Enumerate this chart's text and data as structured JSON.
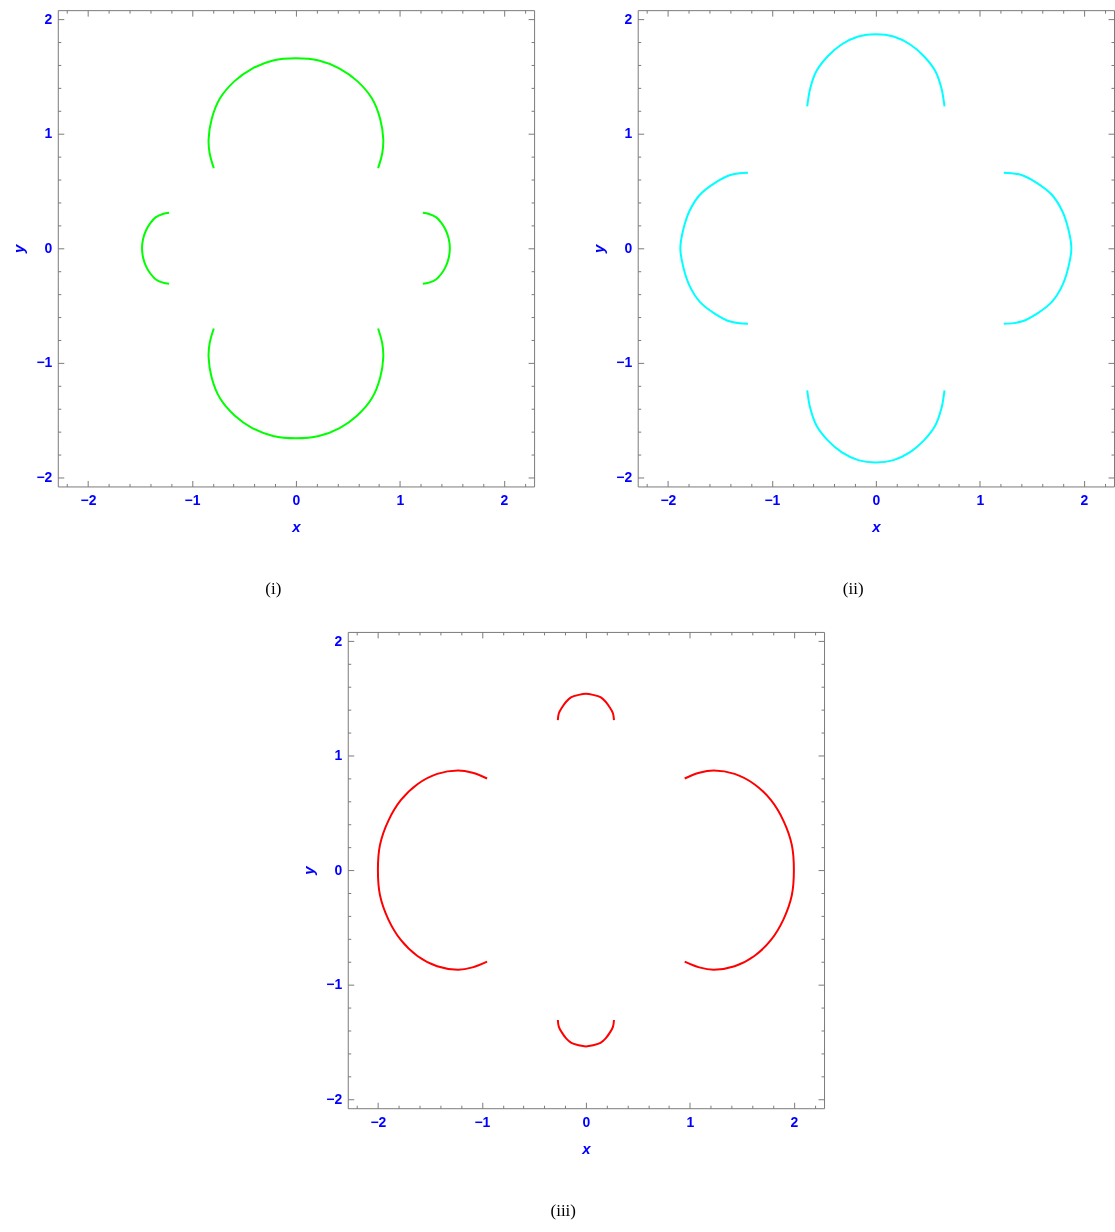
{
  "chart_data": [
    {
      "type": "line",
      "xlabel": "x",
      "ylabel": "y",
      "annotations": [
        "(i)"
      ],
      "xlim": [
        -2.29,
        2.29
      ],
      "ylim": [
        -2.08,
        2.08
      ],
      "xticks": [
        {
          "value": -2.2,
          "label": null
        },
        {
          "value": -2,
          "label": "−2"
        },
        {
          "value": -1.8,
          "label": null
        },
        {
          "value": -1.6,
          "label": null
        },
        {
          "value": -1.4,
          "label": null
        },
        {
          "value": -1.2,
          "label": null
        },
        {
          "value": -1,
          "label": "−1"
        },
        {
          "value": -0.8,
          "label": null
        },
        {
          "value": -0.6,
          "label": null
        },
        {
          "value": -0.4,
          "label": null
        },
        {
          "value": -0.2,
          "label": null
        },
        0,
        {
          "value": 0.2,
          "label": null
        },
        {
          "value": 0.4,
          "label": null
        },
        {
          "value": 0.6,
          "label": null
        },
        {
          "value": 0.8,
          "label": null
        },
        1,
        {
          "value": 1.2,
          "label": null
        },
        {
          "value": 1.4,
          "label": null
        },
        {
          "value": 1.6,
          "label": null
        },
        {
          "value": 1.8,
          "label": null
        },
        2,
        {
          "value": 2.2,
          "label": null
        }
      ],
      "yticks": [
        {
          "value": -2,
          "label": "−2"
        },
        {
          "value": -1.8,
          "label": null
        },
        {
          "value": -1.6,
          "label": null
        },
        {
          "value": -1.4,
          "label": null
        },
        {
          "value": -1.2,
          "label": null
        },
        {
          "value": -1,
          "label": "−1"
        },
        {
          "value": -0.8,
          "label": null
        },
        {
          "value": -0.6,
          "label": null
        },
        {
          "value": -0.4,
          "label": null
        },
        {
          "value": -0.2,
          "label": null
        },
        0,
        {
          "value": 0.2,
          "label": null
        },
        {
          "value": 0.4,
          "label": null
        },
        {
          "value": 0.6,
          "label": null
        },
        {
          "value": 0.8,
          "label": null
        },
        1,
        {
          "value": 1.2,
          "label": null
        },
        {
          "value": 1.4,
          "label": null
        },
        {
          "value": 1.6,
          "label": null
        },
        {
          "value": 1.8,
          "label": null
        },
        2
      ],
      "series": [
        {
          "color": "#00ff00",
          "x": [
            0.79,
            0.83,
            0.84,
            0.81,
            0.73,
            0.59,
            0.42,
            0.22,
            0,
            -0.22,
            -0.42,
            -0.59,
            -0.73,
            -0.81,
            -0.84,
            -0.83,
            -0.79
          ],
          "values": [
            0.7,
            0.83,
            0.95,
            1.13,
            1.31,
            1.46,
            1.57,
            1.64,
            1.66,
            1.64,
            1.57,
            1.46,
            1.31,
            1.13,
            0.95,
            0.83,
            0.7
          ]
        },
        {
          "color": "#00ff00",
          "x": [
            0.79,
            0.83,
            0.84,
            0.81,
            0.73,
            0.59,
            0.42,
            0.22,
            0,
            -0.22,
            -0.42,
            -0.59,
            -0.73,
            -0.81,
            -0.84,
            -0.83,
            -0.79
          ],
          "values": [
            -0.7,
            -0.83,
            -0.95,
            -1.13,
            -1.31,
            -1.46,
            -1.57,
            -1.64,
            -1.66,
            -1.64,
            -1.57,
            -1.46,
            -1.31,
            -1.13,
            -0.95,
            -0.83,
            -0.7
          ]
        },
        {
          "color": "#00ff00",
          "x": [
            -1.22,
            -1.28,
            -1.35,
            -1.4,
            -1.44,
            -1.47,
            -1.48,
            -1.47,
            -1.44,
            -1.4,
            -1.35,
            -1.28,
            -1.22
          ],
          "values": [
            0.31,
            0.3,
            0.27,
            0.22,
            0.16,
            0.08,
            0,
            -0.08,
            -0.16,
            -0.22,
            -0.27,
            -0.3,
            -0.31
          ]
        },
        {
          "color": "#00ff00",
          "x": [
            1.22,
            1.28,
            1.35,
            1.4,
            1.44,
            1.47,
            1.48,
            1.47,
            1.44,
            1.4,
            1.35,
            1.28,
            1.22
          ],
          "values": [
            0.31,
            0.3,
            0.27,
            0.22,
            0.16,
            0.08,
            0,
            -0.08,
            -0.16,
            -0.22,
            -0.27,
            -0.3,
            -0.31
          ]
        }
      ]
    },
    {
      "type": "line",
      "xlabel": "x",
      "ylabel": "y",
      "annotations": [
        "(ii)"
      ],
      "xlim": [
        -2.29,
        2.29
      ],
      "ylim": [
        -2.08,
        2.08
      ],
      "xticks": [
        {
          "value": -2.2,
          "label": null
        },
        {
          "value": -2,
          "label": "−2"
        },
        {
          "value": -1.8,
          "label": null
        },
        {
          "value": -1.6,
          "label": null
        },
        {
          "value": -1.4,
          "label": null
        },
        {
          "value": -1.2,
          "label": null
        },
        {
          "value": -1,
          "label": "−1"
        },
        {
          "value": -0.8,
          "label": null
        },
        {
          "value": -0.6,
          "label": null
        },
        {
          "value": -0.4,
          "label": null
        },
        {
          "value": -0.2,
          "label": null
        },
        0,
        {
          "value": 0.2,
          "label": null
        },
        {
          "value": 0.4,
          "label": null
        },
        {
          "value": 0.6,
          "label": null
        },
        {
          "value": 0.8,
          "label": null
        },
        1,
        {
          "value": 1.2,
          "label": null
        },
        {
          "value": 1.4,
          "label": null
        },
        {
          "value": 1.6,
          "label": null
        },
        {
          "value": 1.8,
          "label": null
        },
        2,
        {
          "value": 2.2,
          "label": null
        }
      ],
      "yticks": [
        {
          "value": -2,
          "label": "−2"
        },
        {
          "value": -1.8,
          "label": null
        },
        {
          "value": -1.6,
          "label": null
        },
        {
          "value": -1.4,
          "label": null
        },
        {
          "value": -1.2,
          "label": null
        },
        {
          "value": -1,
          "label": "−1"
        },
        {
          "value": -0.8,
          "label": null
        },
        {
          "value": -0.6,
          "label": null
        },
        {
          "value": -0.4,
          "label": null
        },
        {
          "value": -0.2,
          "label": null
        },
        0,
        {
          "value": 0.2,
          "label": null
        },
        {
          "value": 0.4,
          "label": null
        },
        {
          "value": 0.6,
          "label": null
        },
        {
          "value": 0.8,
          "label": null
        },
        1,
        {
          "value": 1.2,
          "label": null
        },
        {
          "value": 1.4,
          "label": null
        },
        {
          "value": 1.6,
          "label": null
        },
        {
          "value": 1.8,
          "label": null
        },
        2
      ],
      "series": [
        {
          "color": "#00ffff",
          "x": [
            0.66,
            0.63,
            0.57,
            0.46,
            0.33,
            0.17,
            0,
            -0.17,
            -0.33,
            -0.46,
            -0.57,
            -0.63,
            -0.66
          ],
          "values": [
            1.24,
            1.4,
            1.55,
            1.68,
            1.78,
            1.85,
            1.87,
            1.85,
            1.78,
            1.68,
            1.55,
            1.4,
            1.24
          ]
        },
        {
          "color": "#00ffff",
          "x": [
            0.66,
            0.63,
            0.57,
            0.46,
            0.33,
            0.17,
            0,
            -0.17,
            -0.33,
            -0.46,
            -0.57,
            -0.63,
            -0.66
          ],
          "values": [
            -1.24,
            -1.4,
            -1.55,
            -1.68,
            -1.78,
            -1.85,
            -1.87,
            -1.85,
            -1.78,
            -1.68,
            -1.55,
            -1.4,
            -1.24
          ]
        },
        {
          "color": "#00ffff",
          "x": [
            -1.23,
            -1.4,
            -1.55,
            -1.69,
            -1.79,
            -1.85,
            -1.88,
            -1.85,
            -1.79,
            -1.69,
            -1.55,
            -1.4,
            -1.23
          ],
          "values": [
            0.66,
            0.64,
            0.57,
            0.47,
            0.33,
            0.17,
            0,
            -0.17,
            -0.33,
            -0.47,
            -0.57,
            -0.64,
            -0.66
          ]
        },
        {
          "color": "#00ffff",
          "x": [
            1.23,
            1.4,
            1.55,
            1.69,
            1.79,
            1.85,
            1.88,
            1.85,
            1.79,
            1.69,
            1.55,
            1.4,
            1.23
          ],
          "values": [
            0.66,
            0.64,
            0.57,
            0.47,
            0.33,
            0.17,
            0,
            -0.17,
            -0.33,
            -0.47,
            -0.57,
            -0.64,
            -0.66
          ]
        }
      ]
    },
    {
      "type": "line",
      "xlabel": "x",
      "ylabel": "y",
      "annotations": [
        "(iii)"
      ],
      "xlim": [
        -2.29,
        2.29
      ],
      "ylim": [
        -2.08,
        2.08
      ],
      "xticks": [
        {
          "value": -2.2,
          "label": null
        },
        {
          "value": -2,
          "label": "−2"
        },
        {
          "value": -1.8,
          "label": null
        },
        {
          "value": -1.6,
          "label": null
        },
        {
          "value": -1.4,
          "label": null
        },
        {
          "value": -1.2,
          "label": null
        },
        {
          "value": -1,
          "label": "−1"
        },
        {
          "value": -0.8,
          "label": null
        },
        {
          "value": -0.6,
          "label": null
        },
        {
          "value": -0.4,
          "label": null
        },
        {
          "value": -0.2,
          "label": null
        },
        0,
        {
          "value": 0.2,
          "label": null
        },
        {
          "value": 0.4,
          "label": null
        },
        {
          "value": 0.6,
          "label": null
        },
        {
          "value": 0.8,
          "label": null
        },
        1,
        {
          "value": 1.2,
          "label": null
        },
        {
          "value": 1.4,
          "label": null
        },
        {
          "value": 1.6,
          "label": null
        },
        {
          "value": 1.8,
          "label": null
        },
        2,
        {
          "value": 2.2,
          "label": null
        }
      ],
      "yticks": [
        {
          "value": -2,
          "label": "−2"
        },
        {
          "value": -1.8,
          "label": null
        },
        {
          "value": -1.6,
          "label": null
        },
        {
          "value": -1.4,
          "label": null
        },
        {
          "value": -1.2,
          "label": null
        },
        {
          "value": -1,
          "label": "−1"
        },
        {
          "value": -0.8,
          "label": null
        },
        {
          "value": -0.6,
          "label": null
        },
        {
          "value": -0.4,
          "label": null
        },
        {
          "value": -0.2,
          "label": null
        },
        0,
        {
          "value": 0.2,
          "label": null
        },
        {
          "value": 0.4,
          "label": null
        },
        {
          "value": 0.6,
          "label": null
        },
        {
          "value": 0.8,
          "label": null
        },
        1,
        {
          "value": 1.2,
          "label": null
        },
        {
          "value": 1.4,
          "label": null
        },
        {
          "value": 1.6,
          "label": null
        },
        {
          "value": 1.8,
          "label": null
        },
        2
      ],
      "series": [
        {
          "color": "#ff0000",
          "x": [
            -0.95,
            -1.09,
            -1.23,
            -1.43,
            -1.62,
            -1.78,
            -1.9,
            -1.98,
            -2.0,
            -1.98,
            -1.9,
            -1.78,
            -1.62,
            -1.43,
            -1.23,
            -1.09,
            -0.95
          ],
          "values": [
            0.8,
            0.85,
            0.87,
            0.84,
            0.75,
            0.61,
            0.43,
            0.22,
            0,
            -0.22,
            -0.43,
            -0.61,
            -0.75,
            -0.84,
            -0.87,
            -0.85,
            -0.8
          ]
        },
        {
          "color": "#ff0000",
          "x": [
            0.95,
            1.09,
            1.23,
            1.43,
            1.62,
            1.78,
            1.9,
            1.98,
            2.0,
            1.98,
            1.9,
            1.78,
            1.62,
            1.43,
            1.23,
            1.09,
            0.95
          ],
          "values": [
            0.8,
            0.85,
            0.87,
            0.84,
            0.75,
            0.61,
            0.43,
            0.22,
            0,
            -0.22,
            -0.43,
            -0.61,
            -0.75,
            -0.84,
            -0.87,
            -0.85,
            -0.8
          ]
        },
        {
          "color": "#ff0000",
          "x": [
            0.27,
            0.26,
            0.23,
            0.19,
            0.14,
            0.07,
            0,
            -0.07,
            -0.14,
            -0.19,
            -0.23,
            -0.26,
            -0.27
          ],
          "values": [
            1.31,
            1.37,
            1.42,
            1.47,
            1.51,
            1.53,
            1.54,
            1.53,
            1.51,
            1.47,
            1.42,
            1.37,
            1.31
          ]
        },
        {
          "color": "#ff0000",
          "x": [
            0.27,
            0.26,
            0.23,
            0.19,
            0.14,
            0.07,
            0,
            -0.07,
            -0.14,
            -0.19,
            -0.23,
            -0.26,
            -0.27
          ],
          "values": [
            -1.31,
            -1.37,
            -1.42,
            -1.47,
            -1.51,
            -1.53,
            -1.54,
            -1.53,
            -1.51,
            -1.47,
            -1.42,
            -1.37,
            -1.31
          ]
        }
      ]
    }
  ]
}
